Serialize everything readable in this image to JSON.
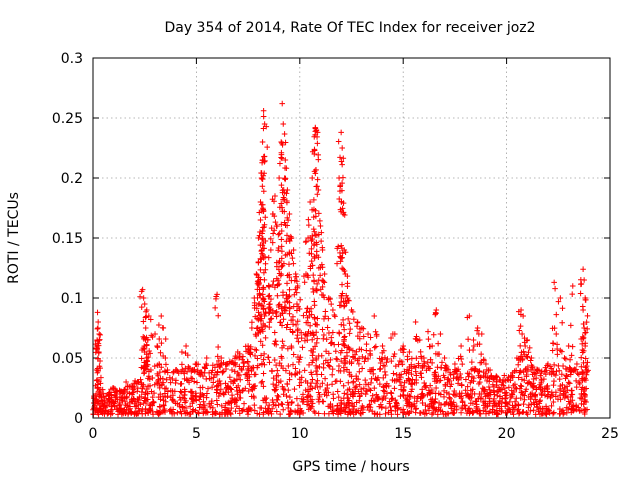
{
  "chart_data": {
    "type": "scatter",
    "title": "Day 354 of 2014, Rate Of TEC Index for receiver joz2",
    "xlabel": "GPS time / hours",
    "ylabel": "ROTI / TECUs",
    "xlim": [
      0,
      25
    ],
    "ylim": [
      0,
      0.3
    ],
    "xticks": [
      0,
      5,
      10,
      15,
      20,
      25
    ],
    "yticks": [
      0,
      0.05,
      0.1,
      0.15,
      0.2,
      0.25,
      0.3
    ],
    "xtick_labels": [
      "0",
      "5",
      "10",
      "15",
      "20",
      "25"
    ],
    "ytick_labels": [
      "0",
      "0.05",
      "0.1",
      "0.15",
      "0.2",
      "0.25",
      "0.3"
    ],
    "grid": true,
    "marker": "+",
    "marker_color": "#ff0000",
    "series": [
      {
        "name": "ROTI",
        "points": [
          [
            0.1,
            0.005
          ],
          [
            0.15,
            0.02
          ],
          [
            0.2,
            0.065
          ],
          [
            0.22,
            0.088
          ],
          [
            0.25,
            0.08
          ],
          [
            0.3,
            0.07
          ],
          [
            0.18,
            0.04
          ],
          [
            0.28,
            0.055
          ],
          [
            0.24,
            0.075
          ],
          [
            0.2,
            0.012
          ],
          [
            0.5,
            0.01
          ],
          [
            0.8,
            0.015
          ],
          [
            1.0,
            0.025
          ],
          [
            1.3,
            0.02
          ],
          [
            1.6,
            0.03
          ],
          [
            2.0,
            0.025
          ],
          [
            2.2,
            0.03
          ],
          [
            2.4,
            0.107
          ],
          [
            2.45,
            0.1
          ],
          [
            2.5,
            0.095
          ],
          [
            2.6,
            0.09
          ],
          [
            2.7,
            0.085
          ],
          [
            2.55,
            0.075
          ],
          [
            2.65,
            0.065
          ],
          [
            2.5,
            0.055
          ],
          [
            2.6,
            0.05
          ],
          [
            2.8,
            0.04
          ],
          [
            3.0,
            0.07
          ],
          [
            3.1,
            0.06
          ],
          [
            3.2,
            0.045
          ],
          [
            3.3,
            0.085
          ],
          [
            3.4,
            0.075
          ],
          [
            3.5,
            0.05
          ],
          [
            3.6,
            0.04
          ],
          [
            4.0,
            0.04
          ],
          [
            4.3,
            0.055
          ],
          [
            4.5,
            0.06
          ],
          [
            4.8,
            0.04
          ],
          [
            5.0,
            0.045
          ],
          [
            5.5,
            0.05
          ],
          [
            6.0,
            0.103
          ],
          [
            6.2,
            0.05
          ],
          [
            6.5,
            0.045
          ],
          [
            7.0,
            0.055
          ],
          [
            7.2,
            0.04
          ],
          [
            7.5,
            0.06
          ],
          [
            7.8,
            0.1
          ],
          [
            7.9,
            0.12
          ],
          [
            8.0,
            0.15
          ],
          [
            8.1,
            0.18
          ],
          [
            8.15,
            0.2
          ],
          [
            8.2,
            0.23
          ],
          [
            8.25,
            0.256
          ],
          [
            8.3,
            0.245
          ],
          [
            8.2,
            0.215
          ],
          [
            8.1,
            0.165
          ],
          [
            8.0,
            0.13
          ],
          [
            8.5,
            0.11
          ],
          [
            8.6,
            0.14
          ],
          [
            8.7,
            0.17
          ],
          [
            8.8,
            0.185
          ],
          [
            8.9,
            0.16
          ],
          [
            9.0,
            0.2
          ],
          [
            9.1,
            0.23
          ],
          [
            9.15,
            0.262
          ],
          [
            9.2,
            0.245
          ],
          [
            9.3,
            0.215
          ],
          [
            9.4,
            0.19
          ],
          [
            9.5,
            0.17
          ],
          [
            9.6,
            0.15
          ],
          [
            9.7,
            0.14
          ],
          [
            9.8,
            0.12
          ],
          [
            9.9,
            0.11
          ],
          [
            10.3,
            0.12
          ],
          [
            10.4,
            0.15
          ],
          [
            10.5,
            0.18
          ],
          [
            10.6,
            0.2
          ],
          [
            10.7,
            0.22
          ],
          [
            10.75,
            0.242
          ],
          [
            10.8,
            0.24
          ],
          [
            10.9,
            0.19
          ],
          [
            11.0,
            0.16
          ],
          [
            11.1,
            0.14
          ],
          [
            11.2,
            0.12
          ],
          [
            11.4,
            0.1
          ],
          [
            11.6,
            0.09
          ],
          [
            11.9,
            0.2
          ],
          [
            12.0,
            0.238
          ],
          [
            12.05,
            0.225
          ],
          [
            12.1,
            0.17
          ],
          [
            12.15,
            0.14
          ],
          [
            12.2,
            0.12
          ],
          [
            12.3,
            0.1
          ],
          [
            12.5,
            0.09
          ],
          [
            12.8,
            0.08
          ],
          [
            13.0,
            0.075
          ],
          [
            13.3,
            0.07
          ],
          [
            13.6,
            0.085
          ],
          [
            14.0,
            0.06
          ],
          [
            14.5,
            0.07
          ],
          [
            15.0,
            0.06
          ],
          [
            15.3,
            0.055
          ],
          [
            15.6,
            0.08
          ],
          [
            15.8,
            0.065
          ],
          [
            16.0,
            0.05
          ],
          [
            16.2,
            0.072
          ],
          [
            16.4,
            0.06
          ],
          [
            16.6,
            0.09
          ],
          [
            16.8,
            0.07
          ],
          [
            17.0,
            0.05
          ],
          [
            17.5,
            0.045
          ],
          [
            17.8,
            0.06
          ],
          [
            18.2,
            0.085
          ],
          [
            18.4,
            0.065
          ],
          [
            18.6,
            0.075
          ],
          [
            18.8,
            0.07
          ],
          [
            19.0,
            0.045
          ],
          [
            19.2,
            0.04
          ],
          [
            19.5,
            0.035
          ],
          [
            19.8,
            0.03
          ],
          [
            20.2,
            0.035
          ],
          [
            20.5,
            0.05
          ],
          [
            20.7,
            0.09
          ],
          [
            20.75,
            0.07
          ],
          [
            20.8,
            0.085
          ],
          [
            20.9,
            0.06
          ],
          [
            21.0,
            0.065
          ],
          [
            21.2,
            0.05
          ],
          [
            21.5,
            0.04
          ],
          [
            22.0,
            0.045
          ],
          [
            22.3,
            0.113
          ],
          [
            22.4,
            0.07
          ],
          [
            22.6,
            0.1
          ],
          [
            22.8,
            0.05
          ],
          [
            23.0,
            0.06
          ],
          [
            23.2,
            0.11
          ],
          [
            23.4,
            0.045
          ],
          [
            23.7,
            0.124
          ],
          [
            23.75,
            0.115
          ],
          [
            23.8,
            0.1
          ],
          [
            23.7,
            0.09
          ],
          [
            23.75,
            0.075
          ],
          [
            23.8,
            0.06
          ],
          [
            23.85,
            0.04
          ]
        ]
      }
    ],
    "envelope": [
      [
        0,
        0.012
      ],
      [
        0.3,
        0.03
      ],
      [
        0.6,
        0.015
      ],
      [
        1.0,
        0.025
      ],
      [
        1.5,
        0.022
      ],
      [
        2.0,
        0.028
      ],
      [
        2.5,
        0.035
      ],
      [
        3.0,
        0.03
      ],
      [
        3.5,
        0.03
      ],
      [
        4.0,
        0.038
      ],
      [
        4.5,
        0.038
      ],
      [
        5.0,
        0.04
      ],
      [
        5.5,
        0.04
      ],
      [
        6.0,
        0.042
      ],
      [
        6.5,
        0.045
      ],
      [
        7.0,
        0.05
      ],
      [
        7.5,
        0.055
      ],
      [
        8.0,
        0.07
      ],
      [
        8.5,
        0.075
      ],
      [
        9.0,
        0.08
      ],
      [
        9.5,
        0.075
      ],
      [
        10.0,
        0.07
      ],
      [
        10.5,
        0.07
      ],
      [
        11.0,
        0.065
      ],
      [
        11.5,
        0.06
      ],
      [
        12.0,
        0.06
      ],
      [
        12.5,
        0.055
      ],
      [
        13.0,
        0.055
      ],
      [
        13.5,
        0.05
      ],
      [
        14.0,
        0.048
      ],
      [
        14.5,
        0.045
      ],
      [
        15.0,
        0.045
      ],
      [
        15.5,
        0.042
      ],
      [
        16.0,
        0.042
      ],
      [
        16.5,
        0.04
      ],
      [
        17.0,
        0.04
      ],
      [
        17.5,
        0.038
      ],
      [
        18.0,
        0.04
      ],
      [
        18.5,
        0.038
      ],
      [
        19.0,
        0.035
      ],
      [
        19.5,
        0.032
      ],
      [
        20.0,
        0.033
      ],
      [
        20.5,
        0.038
      ],
      [
        21.0,
        0.04
      ],
      [
        21.5,
        0.038
      ],
      [
        22.0,
        0.04
      ],
      [
        22.5,
        0.042
      ],
      [
        23.0,
        0.04
      ],
      [
        23.5,
        0.035
      ],
      [
        23.9,
        0.03
      ]
    ]
  }
}
